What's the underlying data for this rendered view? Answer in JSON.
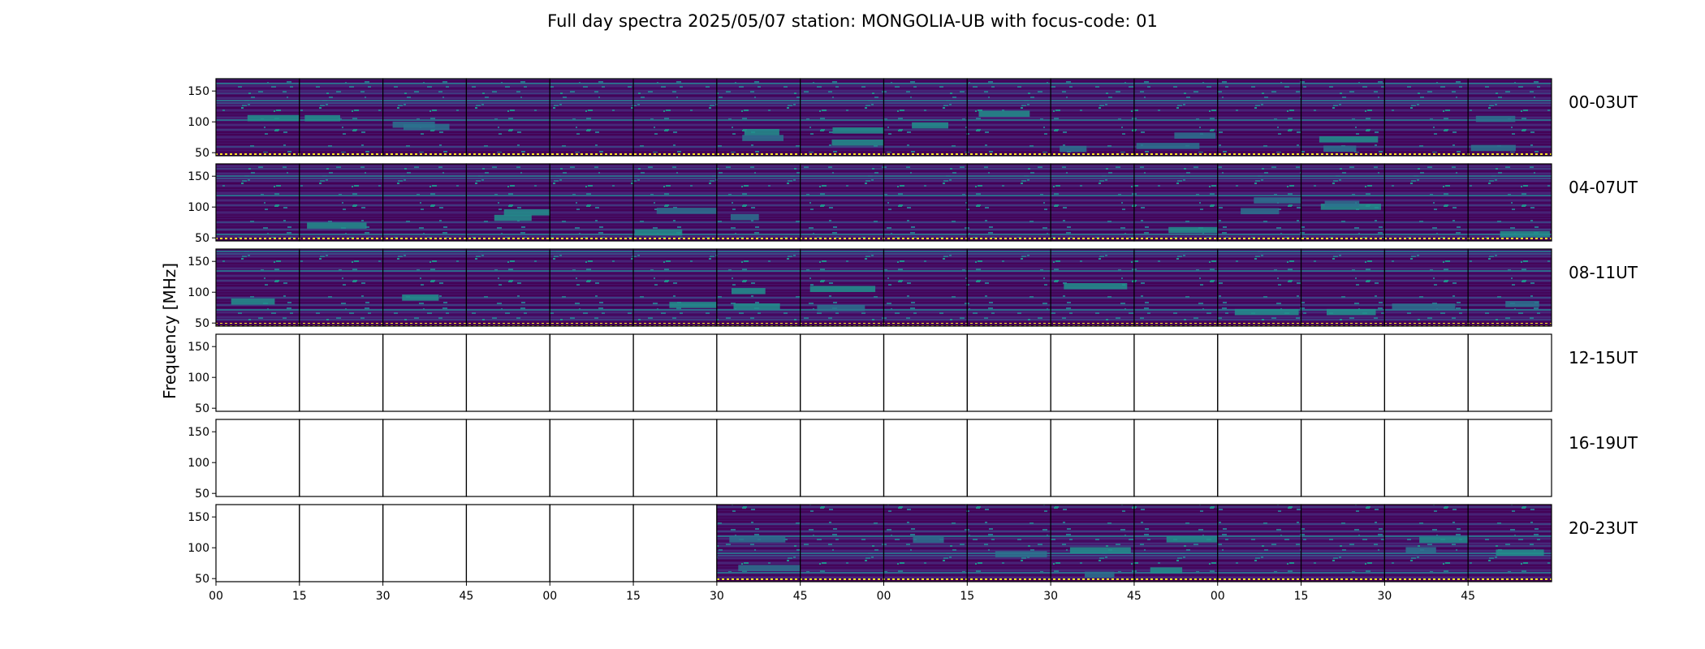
{
  "chart_data": {
    "type": "heatmap",
    "title": "Full day spectra 2025/05/07 station: MONGOLIA-UB with focus-code: 01",
    "ylabel": "Frequency [MHz]",
    "xlabel": "",
    "ylim": [
      45,
      170
    ],
    "yticks": [
      50,
      100,
      150
    ],
    "xtick_labels": [
      "00",
      "15",
      "30",
      "45",
      "00",
      "15",
      "30",
      "45",
      "00",
      "15",
      "30",
      "45",
      "00",
      "15",
      "30",
      "45"
    ],
    "panels_per_row": 16,
    "panel_minutes": 15,
    "colormap": [
      "#440154",
      "#472d7b",
      "#3b528b",
      "#2c728e",
      "#21918c",
      "#28ae80",
      "#5ec962",
      "#addc30",
      "#fde725"
    ],
    "rows": [
      {
        "label": "00-03UT",
        "has_data": [
          1,
          1,
          1,
          1,
          1,
          1,
          1,
          1,
          1,
          1,
          1,
          1,
          1,
          1,
          1,
          1
        ]
      },
      {
        "label": "04-07UT",
        "has_data": [
          1,
          1,
          1,
          1,
          1,
          1,
          1,
          1,
          1,
          1,
          1,
          1,
          1,
          1,
          1,
          1
        ]
      },
      {
        "label": "08-11UT",
        "has_data": [
          1,
          1,
          1,
          1,
          1,
          1,
          1,
          1,
          1,
          1,
          1,
          1,
          1,
          1,
          1,
          1
        ]
      },
      {
        "label": "12-15UT",
        "has_data": [
          0,
          0,
          0,
          0,
          0,
          0,
          0,
          0,
          0,
          0,
          0,
          0,
          0,
          0,
          0,
          0
        ]
      },
      {
        "label": "16-19UT",
        "has_data": [
          0,
          0,
          0,
          0,
          0,
          0,
          0,
          0,
          0,
          0,
          0,
          0,
          0,
          0,
          0,
          0
        ]
      },
      {
        "label": "20-23UT",
        "has_data": [
          0,
          0,
          0,
          0,
          0,
          0,
          1,
          1,
          1,
          1,
          1,
          1,
          1,
          1,
          1,
          1
        ]
      }
    ]
  }
}
